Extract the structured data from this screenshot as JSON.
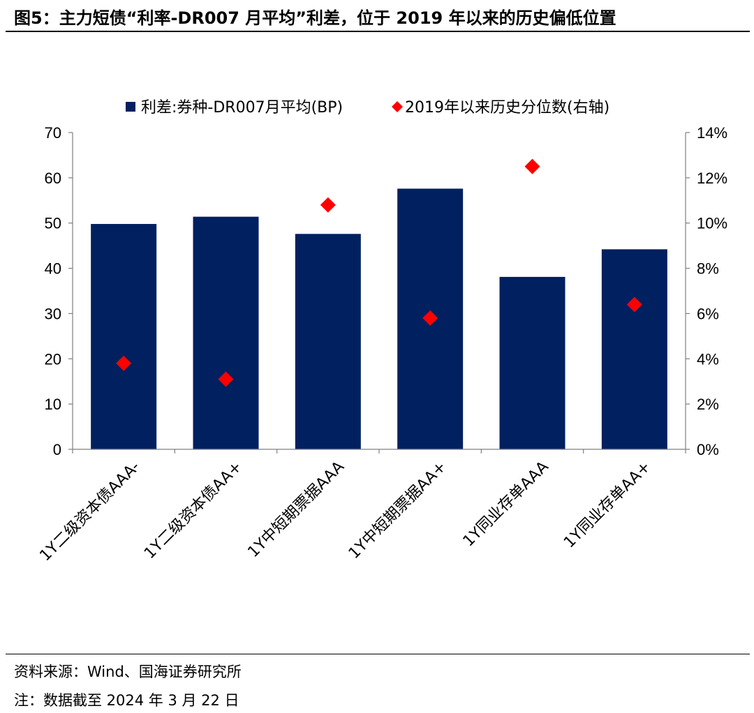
{
  "figure": {
    "title": "图5：主力短债“利率-DR007 月平均”利差，位于 2019 年以来的历史偏低位置",
    "source": "资料来源：Wind、国海证券研究所",
    "note": "注：数据截至 2024 年 3 月 22 日"
  },
  "chart_data": {
    "type": "bar",
    "categories": [
      "1Y二级资本债AAA-",
      "1Y二级资本债AA+",
      "1Y中短期票据AAA",
      "1Y中短期票据AA+",
      "1Y同业存单AAA",
      "1Y同业存单AA+"
    ],
    "series": [
      {
        "name": "利差:券种-DR007月平均(BP)",
        "type": "bar",
        "axis": "left",
        "color": "#002060",
        "values": [
          49.8,
          51.4,
          47.6,
          57.6,
          38.1,
          44.2
        ]
      },
      {
        "name": "2019年以来历史分位数(右轴)",
        "type": "scatter",
        "marker": "diamond",
        "axis": "right",
        "color": "#FF0000",
        "values": [
          3.8,
          3.1,
          10.8,
          5.8,
          12.5,
          6.4
        ]
      }
    ],
    "ylim": [
      0,
      70
    ],
    "yticks": [
      "0",
      "10",
      "20",
      "30",
      "40",
      "50",
      "60",
      "70"
    ],
    "y2lim": [
      0,
      14
    ],
    "y2ticks": [
      "0%",
      "2%",
      "4%",
      "6%",
      "8%",
      "10%",
      "12%",
      "14%"
    ],
    "grid": false,
    "legend_position": "top"
  }
}
